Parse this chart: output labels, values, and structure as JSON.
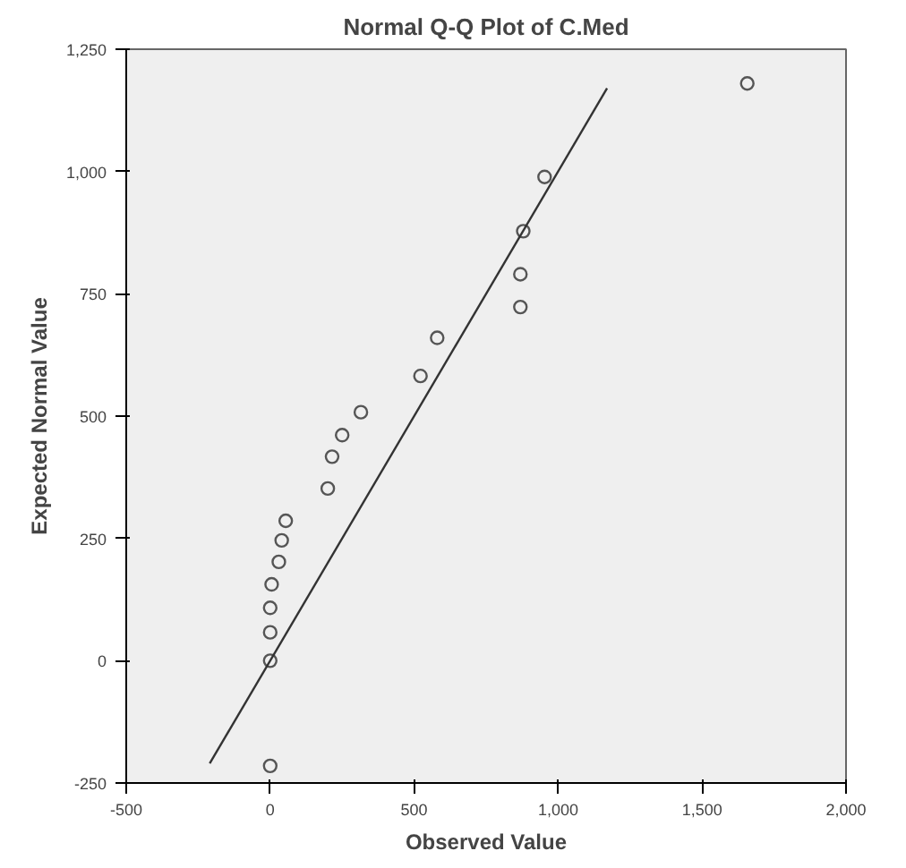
{
  "chart_data": {
    "type": "scatter",
    "title": "Normal Q-Q Plot of C.Med",
    "xlabel": "Observed Value",
    "ylabel": "Expected Normal Value",
    "xlim": [
      -500,
      2000
    ],
    "ylim": [
      -250,
      1250
    ],
    "xticks": [
      {
        "value": -500,
        "label": "-500"
      },
      0,
      500,
      {
        "value": 1000,
        "label": "1,000"
      },
      {
        "value": 1500,
        "label": "1,500"
      },
      {
        "value": 2000,
        "label": "2,000"
      }
    ],
    "yticks": [
      {
        "value": -250,
        "label": "-250"
      },
      0,
      250,
      500,
      750,
      {
        "value": 1000,
        "label": "1,000"
      },
      {
        "value": 1250,
        "label": "1,250"
      }
    ],
    "grid": false,
    "series": [
      {
        "marker": "circle",
        "color": "#555555",
        "x": [
          0,
          0,
          0,
          0,
          5,
          30,
          40,
          54,
          200,
          215,
          250,
          315,
          522,
          580,
          869,
          869,
          879,
          953,
          1657
        ],
        "values": [
          -215,
          0,
          58,
          108,
          156,
          202,
          246,
          286,
          352,
          417,
          461,
          508,
          582,
          660,
          723,
          790,
          878,
          989,
          1180
        ]
      },
      {
        "type": "line",
        "marker": "none",
        "color": "#333333",
        "line_style": "solid",
        "x": [
          -210,
          1170
        ],
        "values": [
          -210,
          1170
        ]
      }
    ]
  }
}
